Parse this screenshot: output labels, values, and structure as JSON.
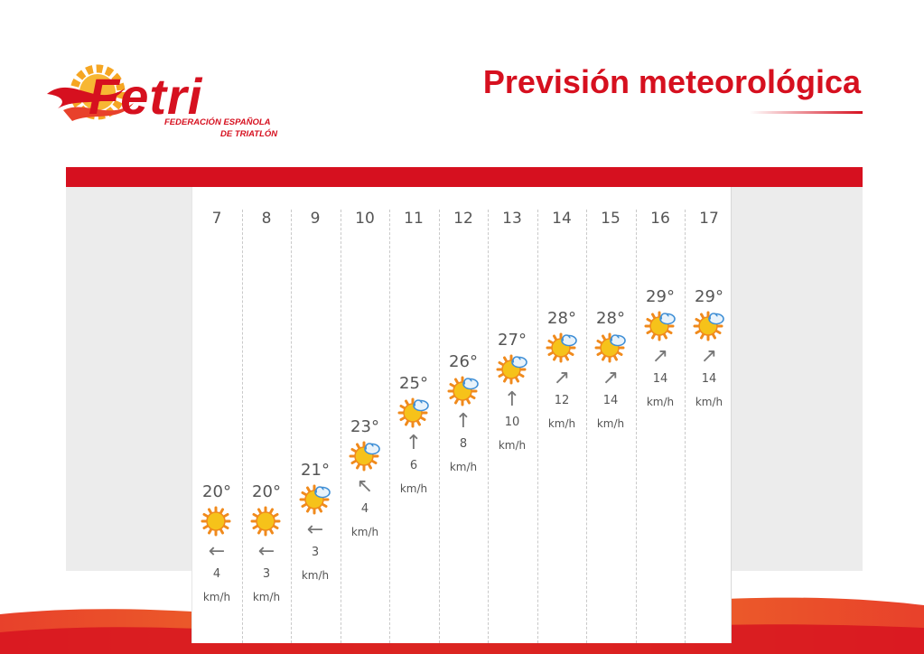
{
  "logo": {
    "name": "Fetri",
    "subtitle_line1": "FEDERACIÓN ESPAÑOLA",
    "subtitle_line2": "DE TRIATLÓN"
  },
  "page_title": "Previsión meteorológica",
  "colors": {
    "brand_red": "#d6101f",
    "accent_orange": "#f5a623",
    "panel_grey": "#ececec"
  },
  "forecast": {
    "hours": [
      {
        "hour": "7",
        "temp": "20°",
        "icon": "sun-icon",
        "wind_arrow": "←",
        "wind_speed": "4",
        "unit": "km/h"
      },
      {
        "hour": "8",
        "temp": "20°",
        "icon": "sun-icon",
        "wind_arrow": "←",
        "wind_speed": "3",
        "unit": "km/h"
      },
      {
        "hour": "9",
        "temp": "21°",
        "icon": "sun-cloud-icon",
        "wind_arrow": "←",
        "wind_speed": "3",
        "unit": "km/h"
      },
      {
        "hour": "10",
        "temp": "23°",
        "icon": "sun-cloud-icon",
        "wind_arrow": "↖",
        "wind_speed": "4",
        "unit": "km/h"
      },
      {
        "hour": "11",
        "temp": "25°",
        "icon": "sun-cloud-icon",
        "wind_arrow": "↑",
        "wind_speed": "6",
        "unit": "km/h"
      },
      {
        "hour": "12",
        "temp": "26°",
        "icon": "sun-cloud-icon",
        "wind_arrow": "↑",
        "wind_speed": "8",
        "unit": "km/h"
      },
      {
        "hour": "13",
        "temp": "27°",
        "icon": "sun-cloud-icon",
        "wind_arrow": "↑",
        "wind_speed": "10",
        "unit": "km/h"
      },
      {
        "hour": "14",
        "temp": "28°",
        "icon": "sun-cloud-icon",
        "wind_arrow": "↗",
        "wind_speed": "12",
        "unit": "km/h"
      },
      {
        "hour": "15",
        "temp": "28°",
        "icon": "sun-cloud-icon",
        "wind_arrow": "↗",
        "wind_speed": "14",
        "unit": "km/h"
      },
      {
        "hour": "16",
        "temp": "29°",
        "icon": "sun-cloud-icon",
        "wind_arrow": "↗",
        "wind_speed": "14",
        "unit": "km/h"
      },
      {
        "hour": "17",
        "temp": "29°",
        "icon": "sun-cloud-icon",
        "wind_arrow": "↗",
        "wind_speed": "14",
        "unit": "km/h"
      }
    ]
  }
}
